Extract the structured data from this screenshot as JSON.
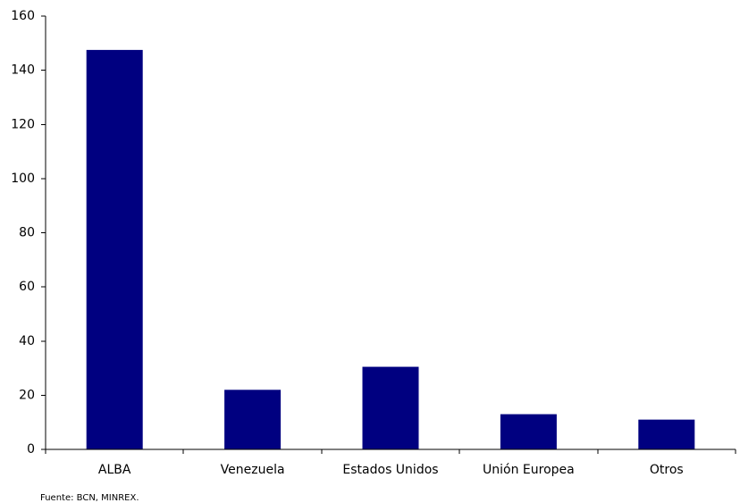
{
  "chart_data": {
    "type": "bar",
    "categories": [
      "ALBA",
      "Venezuela",
      "Estados Unidos",
      "Unión Europea",
      "Otros"
    ],
    "values": [
      147.5,
      22,
      30.5,
      13,
      11
    ],
    "title": "",
    "xlabel": "",
    "ylabel": "",
    "ylim": [
      0,
      160
    ],
    "yticks": [
      0,
      20,
      40,
      60,
      80,
      100,
      120,
      140,
      160
    ],
    "grid": false,
    "legend": "none",
    "bar_color": "#000080"
  },
  "source_note": "Fuente: BCN, MINREX."
}
